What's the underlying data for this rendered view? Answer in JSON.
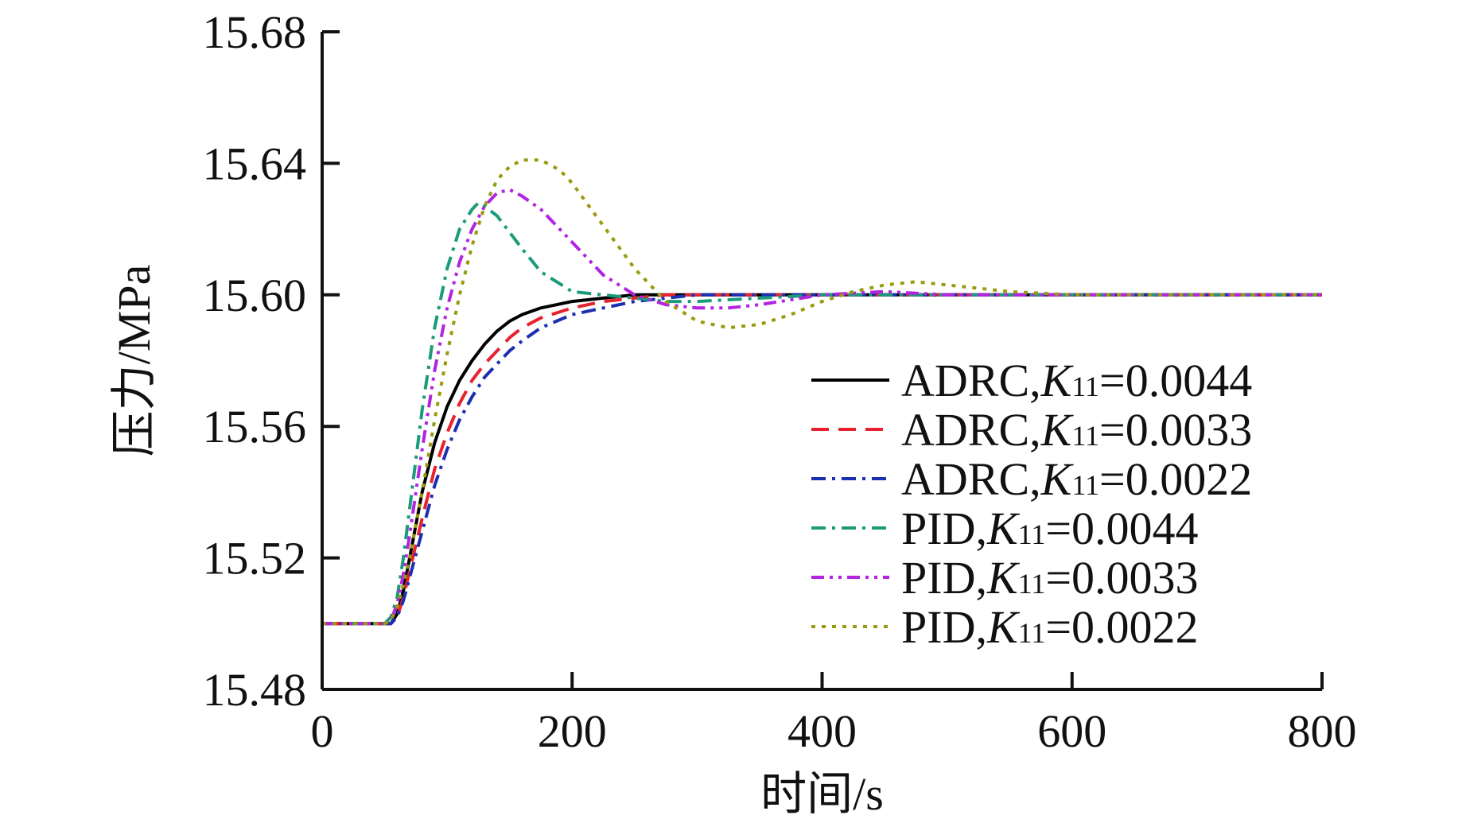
{
  "chart_data": {
    "type": "line",
    "xlabel": "时间/s",
    "ylabel": "压力/MPa",
    "xlim": [
      0,
      800
    ],
    "ylim": [
      15.48,
      15.68
    ],
    "xticks": [
      0,
      200,
      400,
      600,
      800
    ],
    "xtick_labels": [
      "0",
      "200",
      "400",
      "600",
      "800"
    ],
    "yticks": [
      15.48,
      15.52,
      15.56,
      15.6,
      15.64,
      15.68
    ],
    "ytick_labels": [
      "15.48",
      "15.52",
      "15.56",
      "15.60",
      "15.64",
      "15.68"
    ],
    "grid": false,
    "legend_position": "right",
    "series": [
      {
        "name": "ADRC,K11=0.0044",
        "label_prefix": "ADRC,",
        "label_var": "K",
        "label_sub": "11",
        "label_value": "=0.0044",
        "color": "#000000",
        "dash": "solid",
        "x": [
          0,
          50,
          55,
          60,
          65,
          70,
          75,
          80,
          90,
          100,
          110,
          120,
          130,
          140,
          150,
          160,
          175,
          200,
          225,
          250,
          275,
          300,
          400,
          500,
          600,
          700,
          800
        ],
        "y": [
          15.5,
          15.5,
          15.5,
          15.503,
          15.51,
          15.52,
          15.53,
          15.54,
          15.555,
          15.566,
          15.574,
          15.58,
          15.585,
          15.589,
          15.592,
          15.594,
          15.596,
          15.598,
          15.599,
          15.6,
          15.6,
          15.6,
          15.6,
          15.6,
          15.6,
          15.6,
          15.6
        ]
      },
      {
        "name": "ADRC,K11=0.0033",
        "label_prefix": "ADRC,",
        "label_var": "K",
        "label_sub": "11",
        "label_value": "=0.0033",
        "color": "#e8212e",
        "dash": "dashed",
        "x": [
          0,
          50,
          55,
          60,
          65,
          70,
          75,
          80,
          90,
          100,
          110,
          120,
          130,
          140,
          150,
          160,
          175,
          200,
          225,
          250,
          275,
          300,
          400,
          500,
          600,
          700,
          800
        ],
        "y": [
          15.5,
          15.5,
          15.5,
          15.502,
          15.508,
          15.516,
          15.524,
          15.532,
          15.547,
          15.558,
          15.567,
          15.574,
          15.579,
          15.583,
          15.587,
          15.59,
          15.593,
          15.596,
          15.598,
          15.599,
          15.6,
          15.6,
          15.6,
          15.6,
          15.6,
          15.6,
          15.6
        ]
      },
      {
        "name": "ADRC,K11=0.0022",
        "label_prefix": "ADRC,",
        "label_var": "K",
        "label_sub": "11",
        "label_value": "=0.0022",
        "color": "#1c2fb0",
        "dash": "dashdot",
        "x": [
          0,
          50,
          55,
          60,
          65,
          70,
          75,
          80,
          90,
          100,
          110,
          120,
          130,
          140,
          150,
          160,
          175,
          200,
          225,
          250,
          275,
          300,
          400,
          500,
          600,
          700,
          800
        ],
        "y": [
          15.5,
          15.5,
          15.5,
          15.502,
          15.507,
          15.514,
          15.521,
          15.528,
          15.542,
          15.553,
          15.562,
          15.569,
          15.575,
          15.579,
          15.583,
          15.586,
          15.59,
          15.594,
          15.596,
          15.598,
          15.599,
          15.6,
          15.6,
          15.6,
          15.6,
          15.6,
          15.6
        ]
      },
      {
        "name": "PID,K11=0.0044",
        "label_prefix": "PID,",
        "label_var": "K",
        "label_sub": "11",
        "label_value": "=0.0044",
        "color": "#1a9b7a",
        "dash": "dashdot",
        "x": [
          0,
          50,
          55,
          60,
          65,
          70,
          80,
          90,
          100,
          110,
          120,
          125,
          130,
          140,
          150,
          160,
          175,
          200,
          225,
          250,
          275,
          300,
          350,
          400,
          500,
          600,
          700,
          800
        ],
        "y": [
          15.5,
          15.5,
          15.502,
          15.508,
          15.52,
          15.535,
          15.565,
          15.59,
          15.608,
          15.62,
          15.626,
          15.628,
          15.627,
          15.624,
          15.619,
          15.614,
          15.607,
          15.601,
          15.6,
          15.599,
          15.598,
          15.598,
          15.599,
          15.6,
          15.6,
          15.6,
          15.6,
          15.6
        ]
      },
      {
        "name": "PID,K11=0.0033",
        "label_prefix": "PID,",
        "label_var": "K",
        "label_sub": "11",
        "label_value": "=0.0033",
        "color": "#b224e0",
        "dash": "dashdotdot",
        "x": [
          0,
          50,
          55,
          60,
          65,
          70,
          80,
          90,
          100,
          110,
          120,
          130,
          140,
          150,
          160,
          175,
          200,
          225,
          250,
          275,
          300,
          325,
          350,
          400,
          450,
          500,
          600,
          700,
          800
        ],
        "y": [
          15.5,
          15.5,
          15.501,
          15.506,
          15.515,
          15.527,
          15.553,
          15.577,
          15.596,
          15.61,
          15.62,
          15.627,
          15.631,
          15.632,
          15.63,
          15.626,
          15.616,
          15.606,
          15.6,
          15.597,
          15.596,
          15.596,
          15.597,
          15.6,
          15.601,
          15.6,
          15.6,
          15.6,
          15.6
        ]
      },
      {
        "name": "PID,K11=0.0022",
        "label_prefix": "PID,",
        "label_var": "K",
        "label_sub": "11",
        "label_value": "=0.0022",
        "color": "#9a9a10",
        "dash": "dotted",
        "x": [
          0,
          50,
          55,
          60,
          65,
          70,
          80,
          90,
          100,
          110,
          120,
          130,
          140,
          150,
          160,
          170,
          175,
          180,
          190,
          200,
          225,
          250,
          275,
          300,
          325,
          350,
          375,
          400,
          425,
          450,
          475,
          500,
          525,
          550,
          600,
          700,
          800
        ],
        "y": [
          15.5,
          15.5,
          15.501,
          15.505,
          15.512,
          15.52,
          15.54,
          15.562,
          15.582,
          15.6,
          15.615,
          15.627,
          15.635,
          15.639,
          15.641,
          15.641,
          15.641,
          15.64,
          15.638,
          15.634,
          15.621,
          15.608,
          15.598,
          15.592,
          15.59,
          15.591,
          15.594,
          15.598,
          15.601,
          15.603,
          15.604,
          15.603,
          15.602,
          15.601,
          15.6,
          15.6,
          15.6
        ]
      }
    ]
  }
}
